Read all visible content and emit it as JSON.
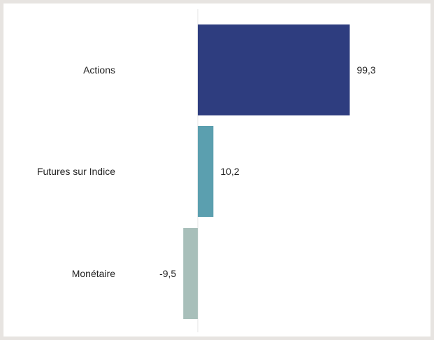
{
  "chart_data": {
    "type": "bar",
    "orientation": "horizontal",
    "categories": [
      "Actions",
      "Futures sur Indice",
      "Monétaire"
    ],
    "values": [
      99.3,
      10.2,
      -9.5
    ],
    "value_labels": [
      "99,3",
      "10,2",
      "-9,5"
    ],
    "colors": [
      "#2e3d7f",
      "#5b9faf",
      "#a8bfba"
    ],
    "title": "",
    "xlabel": "",
    "ylabel": "",
    "grid": false,
    "zero_line_color": "#e6e6e6"
  }
}
